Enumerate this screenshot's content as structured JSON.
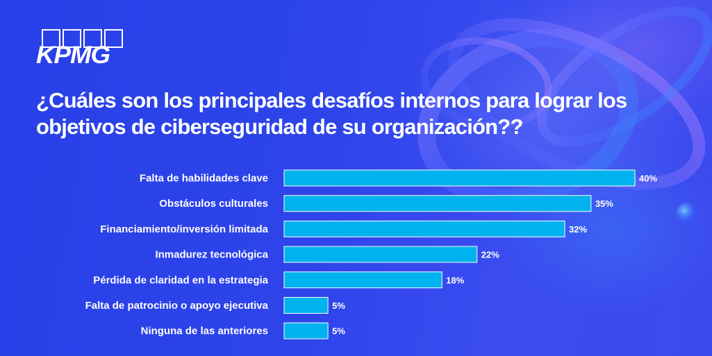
{
  "brand": {
    "logo_text": "KPMG",
    "logo_name": "kpmg-logo"
  },
  "colors": {
    "background": "#2b45e6",
    "bar_fill": "#00b3f0",
    "bar_stroke": "#ffffff",
    "text": "#ffffff"
  },
  "chart_data": {
    "type": "bar",
    "orientation": "horizontal",
    "title": "¿Cuáles son los principales desafíos internos para lograr los objetivos de ciberseguridad de su organización??",
    "categories": [
      "Falta de habilidades clave",
      "Obstáculos culturales",
      "Financiamiento/inversión limitada",
      "Inmadurez tecnológica",
      "Pérdida de claridad en la estrategia",
      "Falta de patrocinio o apoyo ejecutiva",
      "Ninguna de las anteriores"
    ],
    "values": [
      40,
      35,
      32,
      22,
      18,
      5,
      5
    ],
    "value_labels": [
      "40%",
      "35%",
      "32%",
      "22%",
      "18%",
      "5%",
      "5%"
    ],
    "xlim": [
      0,
      40
    ],
    "xlabel": "",
    "ylabel": "",
    "grid": false,
    "legend": "none"
  }
}
